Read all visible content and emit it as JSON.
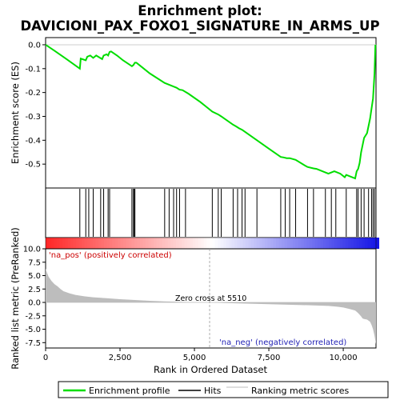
{
  "title_line1": "Enrichment plot:",
  "title_line2": "DAVICIONI_PAX_FOXO1_SIGNATURE_IN_ARMS_UP",
  "colors": {
    "enrichment_line": "#00dd00",
    "hits": "#000000",
    "metric_fill": "#bdbdbd",
    "pos_label": "#cc0000",
    "neg_label": "#1f1fb4"
  },
  "chart_data": {
    "type": "line",
    "n_genes": 11100,
    "zero_cross": 5510,
    "es_panel": {
      "ylabel": "Enrichment score (ES)",
      "ylim": [
        -0.6,
        0.03
      ],
      "yticks": [
        0.0,
        -0.1,
        -0.2,
        -0.3,
        -0.4,
        -0.5
      ],
      "ytick_labels": [
        "0.0",
        "-0.1",
        "-0.2",
        "-0.3",
        "-0.4",
        "-0.5"
      ],
      "series": [
        {
          "x": [
            0,
            300,
            700,
            1150,
            1180,
            1350,
            1400,
            1500,
            1600,
            1700,
            1900,
            1950,
            2050,
            2100,
            2150,
            2200,
            2400,
            2600,
            2900,
            2950,
            3000,
            3050,
            3200,
            3500,
            4000,
            4100,
            4300,
            4400,
            4500,
            4600,
            4800,
            5200,
            5600,
            5800,
            5900,
            6300,
            6400,
            6500,
            6600,
            6700,
            7100,
            7500,
            7900,
            8000,
            8100,
            8200,
            8400,
            8700,
            8800,
            9000,
            9100,
            9400,
            9500,
            9600,
            9700,
            9900,
            10050,
            10100,
            10300,
            10400,
            10450,
            10500,
            10550,
            10600,
            10700,
            10800,
            10900,
            11000,
            11050,
            11080
          ],
          "y": [
            0.0,
            -0.025,
            -0.06,
            -0.1,
            -0.058,
            -0.065,
            -0.05,
            -0.045,
            -0.055,
            -0.045,
            -0.06,
            -0.045,
            -0.04,
            -0.045,
            -0.03,
            -0.028,
            -0.045,
            -0.065,
            -0.09,
            -0.085,
            -0.075,
            -0.075,
            -0.09,
            -0.12,
            -0.16,
            -0.165,
            -0.175,
            -0.18,
            -0.188,
            -0.19,
            -0.205,
            -0.24,
            -0.28,
            -0.292,
            -0.3,
            -0.335,
            -0.342,
            -0.35,
            -0.356,
            -0.365,
            -0.4,
            -0.435,
            -0.47,
            -0.472,
            -0.475,
            -0.475,
            -0.482,
            -0.505,
            -0.512,
            -0.518,
            -0.52,
            -0.535,
            -0.54,
            -0.535,
            -0.53,
            -0.54,
            -0.555,
            -0.545,
            -0.555,
            -0.56,
            -0.53,
            -0.52,
            -0.495,
            -0.45,
            -0.39,
            -0.37,
            -0.31,
            -0.225,
            -0.12,
            0.0
          ]
        }
      ]
    },
    "hits": [
      1150,
      1350,
      1450,
      1600,
      1850,
      1950,
      2100,
      2150,
      2900,
      2950,
      2980,
      3000,
      4000,
      4150,
      4300,
      4400,
      4500,
      4700,
      5600,
      5800,
      5900,
      6300,
      6450,
      6600,
      6700,
      7100,
      7900,
      8050,
      8200,
      8400,
      8800,
      9000,
      9400,
      9600,
      9750,
      10100,
      10450,
      10500,
      10600,
      10700,
      10850,
      10950,
      11000,
      11050
    ],
    "metric_panel": {
      "ylabel": "Ranked list metric (PreRanked)",
      "ylim": [
        -8.5,
        10.0
      ],
      "yticks": [
        10.0,
        7.5,
        5.0,
        2.5,
        0.0,
        -2.5,
        -5.0,
        -7.5
      ],
      "ytick_labels": [
        "10.0",
        "7.5",
        "5.0",
        "2.5",
        "0.0",
        "-2.5",
        "-5.0",
        "-7.5"
      ],
      "profile_x": [
        0,
        50,
        100,
        200,
        300,
        400,
        500,
        600,
        800,
        1000,
        1300,
        1600,
        2000,
        2500,
        3000,
        3500,
        4000,
        4500,
        5000,
        5510,
        6000,
        7000,
        8000,
        9000,
        9500,
        9800,
        10000,
        10200,
        10400,
        10500,
        10600,
        10650,
        10700,
        10800,
        10900,
        10950,
        11000,
        11050,
        11100
      ],
      "profile_y": [
        6.3,
        5.5,
        4.8,
        4.0,
        3.4,
        3.0,
        2.5,
        2.1,
        1.7,
        1.4,
        1.15,
        0.95,
        0.8,
        0.6,
        0.45,
        0.3,
        0.2,
        0.12,
        0.05,
        0.0,
        -0.1,
        -0.25,
        -0.4,
        -0.55,
        -0.65,
        -0.8,
        -0.95,
        -1.2,
        -1.5,
        -2.0,
        -2.6,
        -3.0,
        -3.1,
        -3.2,
        -3.6,
        -4.2,
        -5.0,
        -6.2,
        -7.8
      ]
    },
    "xaxis": {
      "xlabel": "Rank in Ordered Dataset",
      "xlim": [
        0,
        11100
      ],
      "xticks": [
        0,
        2500,
        5000,
        7500,
        10000
      ],
      "xtick_labels": [
        "0",
        "2,500",
        "5,000",
        "7,500",
        "10,000"
      ]
    },
    "annotations": {
      "pos": "'na_pos' (positively correlated)",
      "neg": "'na_neg' (negatively correlated)",
      "zero": "Zero cross at 5510"
    },
    "legend": [
      {
        "label": "Enrichment profile",
        "color": "#00dd00",
        "kind": "line"
      },
      {
        "label": "Hits",
        "color": "#000000",
        "kind": "line"
      },
      {
        "label": "Ranking metric scores",
        "color": "#bdbdbd",
        "kind": "line"
      }
    ]
  }
}
